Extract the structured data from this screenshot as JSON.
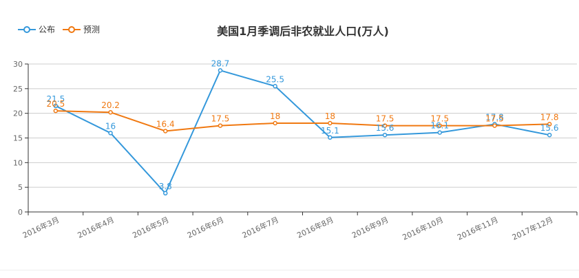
{
  "chart_data": {
    "type": "line",
    "title": "美国1月季调后非农就业人口(万人)",
    "categories": [
      "2016年3月",
      "2016年4月",
      "2016年5月",
      "2016年6月",
      "2016年7月",
      "2016年8月",
      "2016年9月",
      "2016年10月",
      "2016年11月",
      "2017年12月"
    ],
    "series": [
      {
        "name": "公布",
        "color": "#3498db",
        "values": [
          21.5,
          16,
          3.8,
          28.7,
          25.5,
          15.1,
          15.6,
          16.1,
          17.8,
          15.6
        ]
      },
      {
        "name": "预测",
        "color": "#f07810",
        "values": [
          20.5,
          20.2,
          16.4,
          17.5,
          18,
          18,
          17.5,
          17.5,
          17.5,
          17.8
        ]
      }
    ],
    "ylim": [
      0,
      30
    ],
    "yticks": [
      0,
      5,
      10,
      15,
      20,
      25,
      30
    ],
    "xlabel": "",
    "ylabel": "",
    "grid": true,
    "legend": "top-left"
  }
}
